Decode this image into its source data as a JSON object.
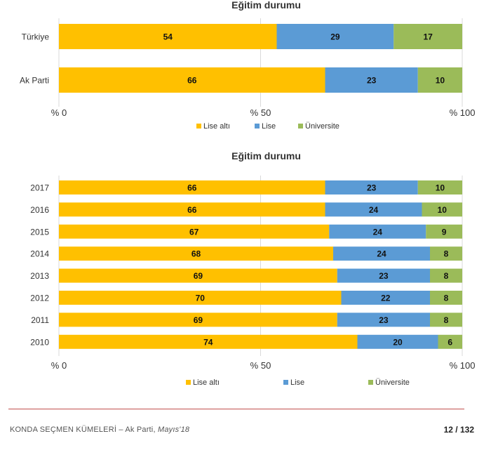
{
  "colors": {
    "lise_alti": "#FFC000",
    "lise": "#5B9BD5",
    "universite": "#9BBB59",
    "grid": "#d9d9d9"
  },
  "chart_data": [
    {
      "type": "bar",
      "orientation": "horizontal",
      "stacked": true,
      "title": "Eğitim durumu",
      "categories": [
        "Türkiye",
        "Ak Parti"
      ],
      "series": [
        {
          "name": "Lise altı",
          "values": [
            54,
            66
          ]
        },
        {
          "name": "Lise",
          "values": [
            29,
            23
          ]
        },
        {
          "name": "Üniversite",
          "values": [
            17,
            10
          ]
        }
      ],
      "xlim": [
        0,
        100
      ],
      "xticks": [
        "% 0",
        "% 50",
        "% 100"
      ],
      "grid": true,
      "legend": "bottom"
    },
    {
      "type": "bar",
      "orientation": "horizontal",
      "stacked": true,
      "title": "Eğitim durumu",
      "categories": [
        "2017",
        "2016",
        "2015",
        "2014",
        "2013",
        "2012",
        "2011",
        "2010"
      ],
      "series": [
        {
          "name": "Lise altı",
          "values": [
            66,
            66,
            67,
            68,
            69,
            70,
            69,
            74
          ]
        },
        {
          "name": "Lise",
          "values": [
            23,
            24,
            24,
            24,
            23,
            22,
            23,
            20
          ]
        },
        {
          "name": "Üniversite",
          "values": [
            10,
            10,
            9,
            8,
            8,
            8,
            8,
            6
          ]
        }
      ],
      "xlim": [
        0,
        100
      ],
      "xticks": [
        "% 0",
        "% 50",
        "% 100"
      ],
      "grid": true,
      "legend": "bottom"
    }
  ],
  "footer": {
    "source": "KONDA SEÇMEN KÜMELERİ – Ak Parti, ",
    "date": "Mayıs'18",
    "page": "12 / 132"
  }
}
